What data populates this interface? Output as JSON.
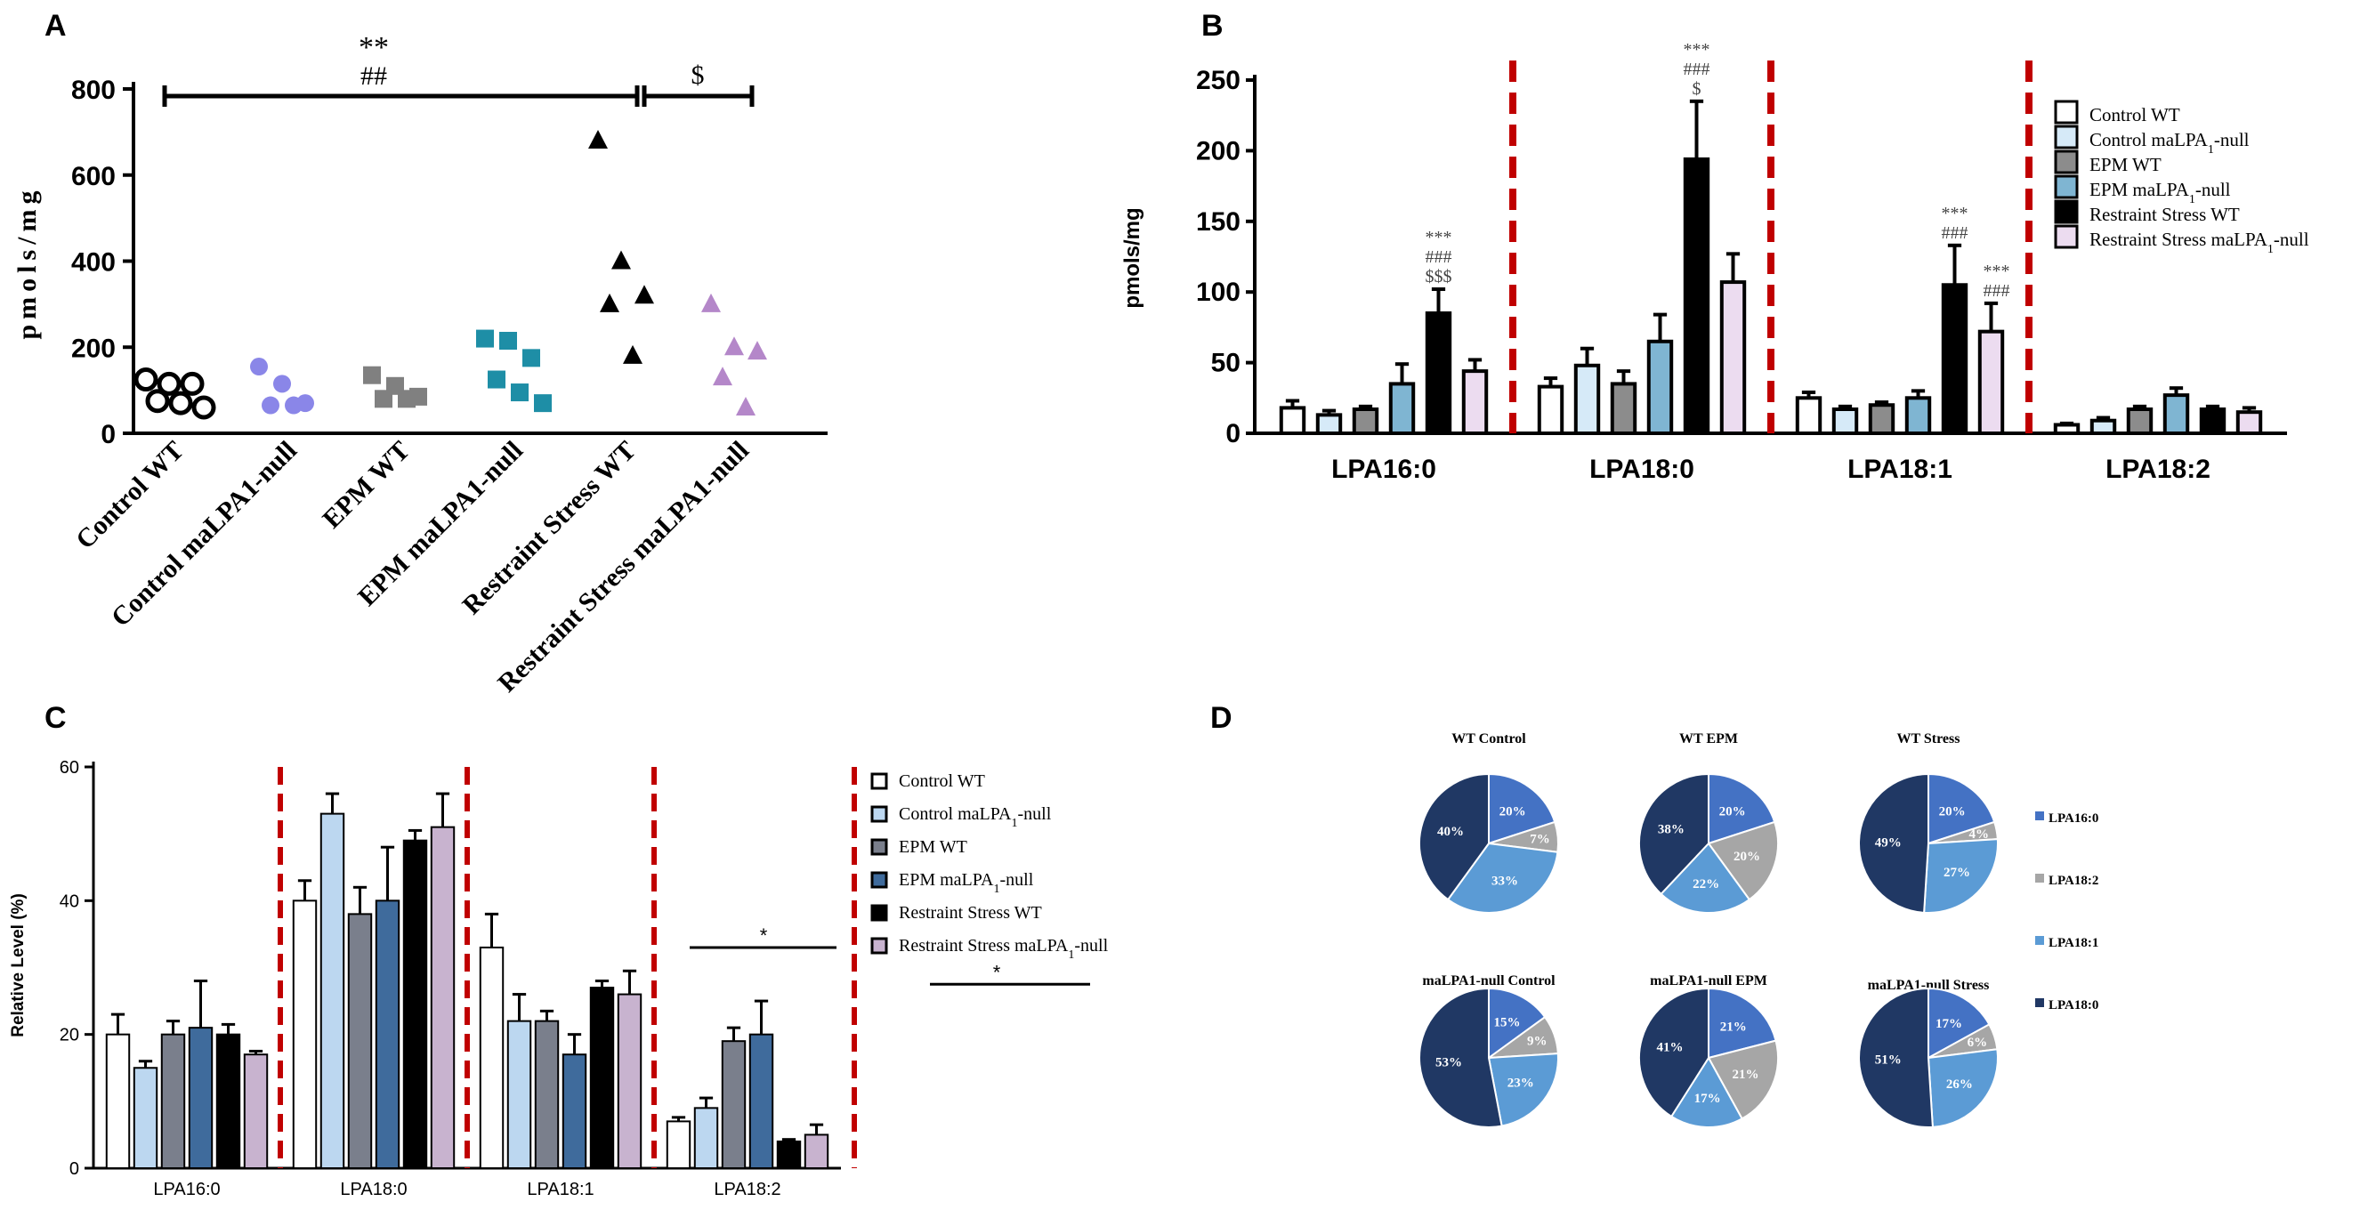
{
  "panels": {
    "A": "A",
    "B": "B",
    "C": "C",
    "D": "D"
  },
  "chart_data": [
    {
      "panel": "A",
      "type": "scatter",
      "ylabel": "pmols/mg",
      "ylim": [
        0,
        800
      ],
      "yticks": [
        "0",
        "200",
        "400",
        "600",
        "800"
      ],
      "categories": [
        "Control WT",
        "Control maLPA1-null",
        "EPM WT",
        "EPM maLPA1-null",
        "Restraint Stress WT",
        "Restraint Stress maLPA1-null"
      ],
      "groups": [
        {
          "name": "Control WT",
          "marker": "open-circle",
          "color": "#000000",
          "values": [
            125,
            115,
            115,
            75,
            70,
            60
          ]
        },
        {
          "name": "Control maLPA1-null",
          "marker": "circle",
          "color": "#8a86e8",
          "values": [
            155,
            115,
            70,
            65,
            65
          ]
        },
        {
          "name": "EPM WT",
          "marker": "square",
          "color": "#808080",
          "values": [
            135,
            110,
            85,
            80,
            80
          ]
        },
        {
          "name": "EPM maLPA1-null",
          "marker": "square",
          "color": "#1e8ea6",
          "values": [
            220,
            215,
            175,
            125,
            95,
            70
          ]
        },
        {
          "name": "Restraint Stress WT",
          "marker": "triangle",
          "color": "#000000",
          "values": [
            680,
            400,
            320,
            300,
            180
          ]
        },
        {
          "name": "Restraint Stress maLPA1-null",
          "marker": "triangle",
          "color": "#b487c9",
          "values": [
            300,
            200,
            190,
            130,
            60
          ]
        }
      ],
      "annotations": {
        "top_stars": "**",
        "top_hash": "##",
        "dollar": "$"
      }
    },
    {
      "panel": "B",
      "type": "bar",
      "ylabel": "pmols/mg",
      "ylim": [
        0,
        250
      ],
      "yticks": [
        "0",
        "50",
        "100",
        "150",
        "200",
        "250"
      ],
      "categories": [
        "LPA16:0",
        "LPA18:0",
        "LPA18:1",
        "LPA18:2"
      ],
      "series": [
        {
          "name": "Control WT",
          "color": "#ffffff",
          "values": [
            18,
            33,
            25,
            6
          ],
          "errors": [
            5,
            6,
            4,
            1
          ]
        },
        {
          "name": "Control maLPA1-null",
          "color": "#d6eaf8",
          "values": [
            13,
            48,
            17,
            9
          ],
          "errors": [
            3,
            12,
            2,
            2
          ]
        },
        {
          "name": "EPM WT",
          "color": "#8c8c8c",
          "values": [
            17,
            35,
            20,
            17
          ],
          "errors": [
            2,
            9,
            2,
            2
          ]
        },
        {
          "name": "EPM maLPA1-null",
          "color": "#7fb5d2",
          "values": [
            35,
            65,
            25,
            27
          ],
          "errors": [
            14,
            19,
            5,
            5
          ]
        },
        {
          "name": "Restraint Stress WT",
          "color": "#000000",
          "values": [
            85,
            194,
            105,
            17
          ],
          "errors": [
            17,
            41,
            28,
            2
          ]
        },
        {
          "name": "Restraint Stress maLPA1-null",
          "color": "#ecdcf0",
          "values": [
            44,
            107,
            72,
            15
          ],
          "errors": [
            8,
            20,
            20,
            3
          ]
        }
      ],
      "legend_lines": [
        {
          "base": "Control WT",
          "sub": "",
          "tail": ""
        },
        {
          "base": "Control maLPA",
          "sub": "1",
          "tail": "-null"
        },
        {
          "base": "EPM WT",
          "sub": "",
          "tail": ""
        },
        {
          "base": "EPM maLPA",
          "sub": "1",
          "tail": "-null"
        },
        {
          "base": "Restraint Stress WT",
          "sub": "",
          "tail": ""
        },
        {
          "base": "Restraint Stress maLPA",
          "sub": "1",
          "tail": "-null"
        }
      ],
      "annotations": {
        "g0": [
          "***",
          "###",
          "$$$"
        ],
        "g1": [
          "***",
          "###",
          "$"
        ],
        "g2a": [
          "***",
          "###"
        ],
        "g2b": [
          "***",
          "###"
        ]
      }
    },
    {
      "panel": "C",
      "type": "bar",
      "ylabel": "Relative Level (%)",
      "ylim": [
        0,
        60
      ],
      "yticks": [
        "0",
        "20",
        "40",
        "60"
      ],
      "categories": [
        "LPA16:0",
        "LPA18:0",
        "LPA18:1",
        "LPA18:2"
      ],
      "series": [
        {
          "name": "Control WT",
          "color": "#ffffff",
          "values": [
            20,
            40,
            33,
            7
          ],
          "errors": [
            3,
            3,
            5,
            0.6
          ]
        },
        {
          "name": "Control maLPA1-null",
          "color": "#bcd7f0",
          "values": [
            15,
            53,
            22,
            9
          ],
          "errors": [
            1,
            3,
            4,
            1.5
          ]
        },
        {
          "name": "EPM WT",
          "color": "#7a7f8c",
          "values": [
            20,
            38,
            22,
            19
          ],
          "errors": [
            2,
            4,
            1.5,
            2
          ]
        },
        {
          "name": "EPM maLPA1-null",
          "color": "#3f6b9c",
          "values": [
            21,
            40,
            17,
            20
          ],
          "errors": [
            7,
            8,
            3,
            5
          ]
        },
        {
          "name": "Restraint Stress WT",
          "color": "#000000",
          "values": [
            20,
            49,
            27,
            4
          ],
          "errors": [
            1.5,
            1.5,
            1,
            0.3
          ]
        },
        {
          "name": "Restraint Stress maLPA1-null",
          "color": "#c8b3cf",
          "values": [
            17,
            51,
            26,
            5
          ],
          "errors": [
            0.5,
            5,
            3.5,
            1.5
          ]
        }
      ],
      "legend_lines": [
        {
          "base": "Control WT",
          "sub": "",
          "tail": ""
        },
        {
          "base": "Control maLPA",
          "sub": "1",
          "tail": "-null"
        },
        {
          "base": "EPM WT",
          "sub": "",
          "tail": ""
        },
        {
          "base": "EPM maLPA",
          "sub": "1",
          "tail": "-null"
        },
        {
          "base": "Restraint Stress WT",
          "sub": "",
          "tail": ""
        },
        {
          "base": "Restraint Stress maLPA",
          "sub": "1",
          "tail": "-null"
        }
      ],
      "annotations": {
        "sig1": "*",
        "sig2": "*"
      }
    },
    {
      "panel": "D",
      "type": "pie",
      "legend": [
        {
          "name": "LPA16:0",
          "color": "#4472c4"
        },
        {
          "name": "LPA18:2",
          "color": "#a6a6a6"
        },
        {
          "name": "LPA18:1",
          "color": "#5b9bd5"
        },
        {
          "name": "LPA18:0",
          "color": "#203864"
        }
      ],
      "pies": [
        {
          "title": "WT Control",
          "values": [
            20,
            7,
            33,
            40
          ],
          "labels": [
            "20%",
            "7%",
            "33%",
            "40%"
          ]
        },
        {
          "title": "WT EPM",
          "values": [
            20,
            20,
            22,
            38
          ],
          "labels": [
            "20%",
            "20%",
            "22%",
            "38%"
          ]
        },
        {
          "title": "WT Stress",
          "values": [
            20,
            4,
            27,
            49
          ],
          "labels": [
            "20%",
            "4%",
            "27%",
            "49%"
          ]
        },
        {
          "title": "maLPA1-null Control",
          "values": [
            15,
            9,
            23,
            53
          ],
          "labels": [
            "15%",
            "9%",
            "23%",
            "53%"
          ]
        },
        {
          "title": "maLPA1-null EPM",
          "values": [
            21,
            21,
            17,
            41
          ],
          "labels": [
            "21%",
            "21%",
            "17%",
            "41%"
          ]
        },
        {
          "title": "maLPA1-null Stress",
          "values": [
            17,
            6,
            26,
            51
          ],
          "labels": [
            "17%",
            "6%",
            "26%",
            "51%"
          ]
        }
      ]
    }
  ]
}
